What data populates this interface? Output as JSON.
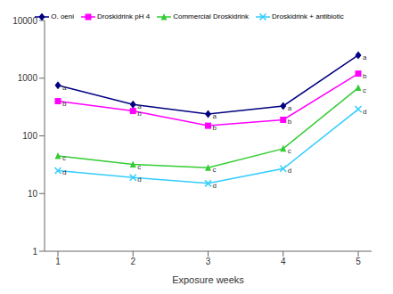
{
  "chart_data": {
    "type": "line",
    "x_label": "Exposure weeks",
    "categories": [
      "1",
      "2",
      "3",
      "4",
      "5"
    ],
    "log": "y",
    "ylim": [
      1,
      10000
    ],
    "yticks": [
      1,
      10,
      100,
      1000,
      10000
    ],
    "grid": false,
    "legend": "top",
    "series": [
      {
        "name": "O. oeni",
        "color": "#000080",
        "marker": "diamond",
        "values": [
          750,
          350,
          240,
          330,
          2500
        ],
        "letters": [
          "a",
          "a",
          "a",
          "a",
          "a"
        ]
      },
      {
        "name": "Droskidrink pH 4",
        "color": "#ff00ff",
        "marker": "square",
        "values": [
          400,
          270,
          150,
          190,
          1200
        ],
        "letters": [
          "b",
          "b",
          "b",
          "b",
          "b"
        ]
      },
      {
        "name": "Commercial Droskidrink",
        "color": "#33cc33",
        "marker": "triangle",
        "values": [
          45,
          32,
          28,
          60,
          680
        ],
        "letters": [
          "c",
          "c",
          "c",
          "c",
          "c"
        ]
      },
      {
        "name": "Droskidrink + antibiotic",
        "color": "#33ccff",
        "marker": "x",
        "values": [
          25,
          19,
          15,
          27,
          290
        ],
        "letters": [
          "d",
          "d",
          "d",
          "d",
          "d"
        ]
      }
    ]
  }
}
